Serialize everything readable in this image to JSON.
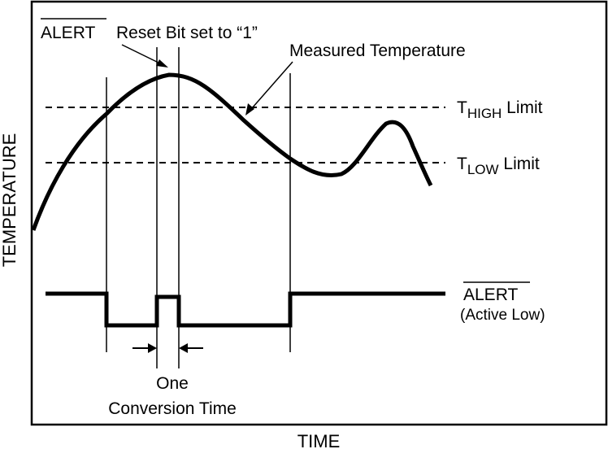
{
  "diagram": {
    "axes": {
      "x_label": "TIME",
      "y_label": "TEMPERATURE"
    },
    "annotations": {
      "reset_overline": "ALERT",
      "reset_rest": "Reset Bit set to “1”",
      "measured": "Measured Temperature",
      "thigh_t": "T",
      "thigh_sub": "HIGH",
      "thigh_rest": " Limit",
      "tlow_t": "T",
      "tlow_sub": "LOW",
      "tlow_rest": " Limit",
      "alert_label": "ALERT",
      "alert_note": "(Active Low)",
      "conv_line1": "One",
      "conv_line2": "Conversion Time"
    },
    "colors": {
      "ink": "#000000",
      "background": "#ffffff"
    }
  }
}
